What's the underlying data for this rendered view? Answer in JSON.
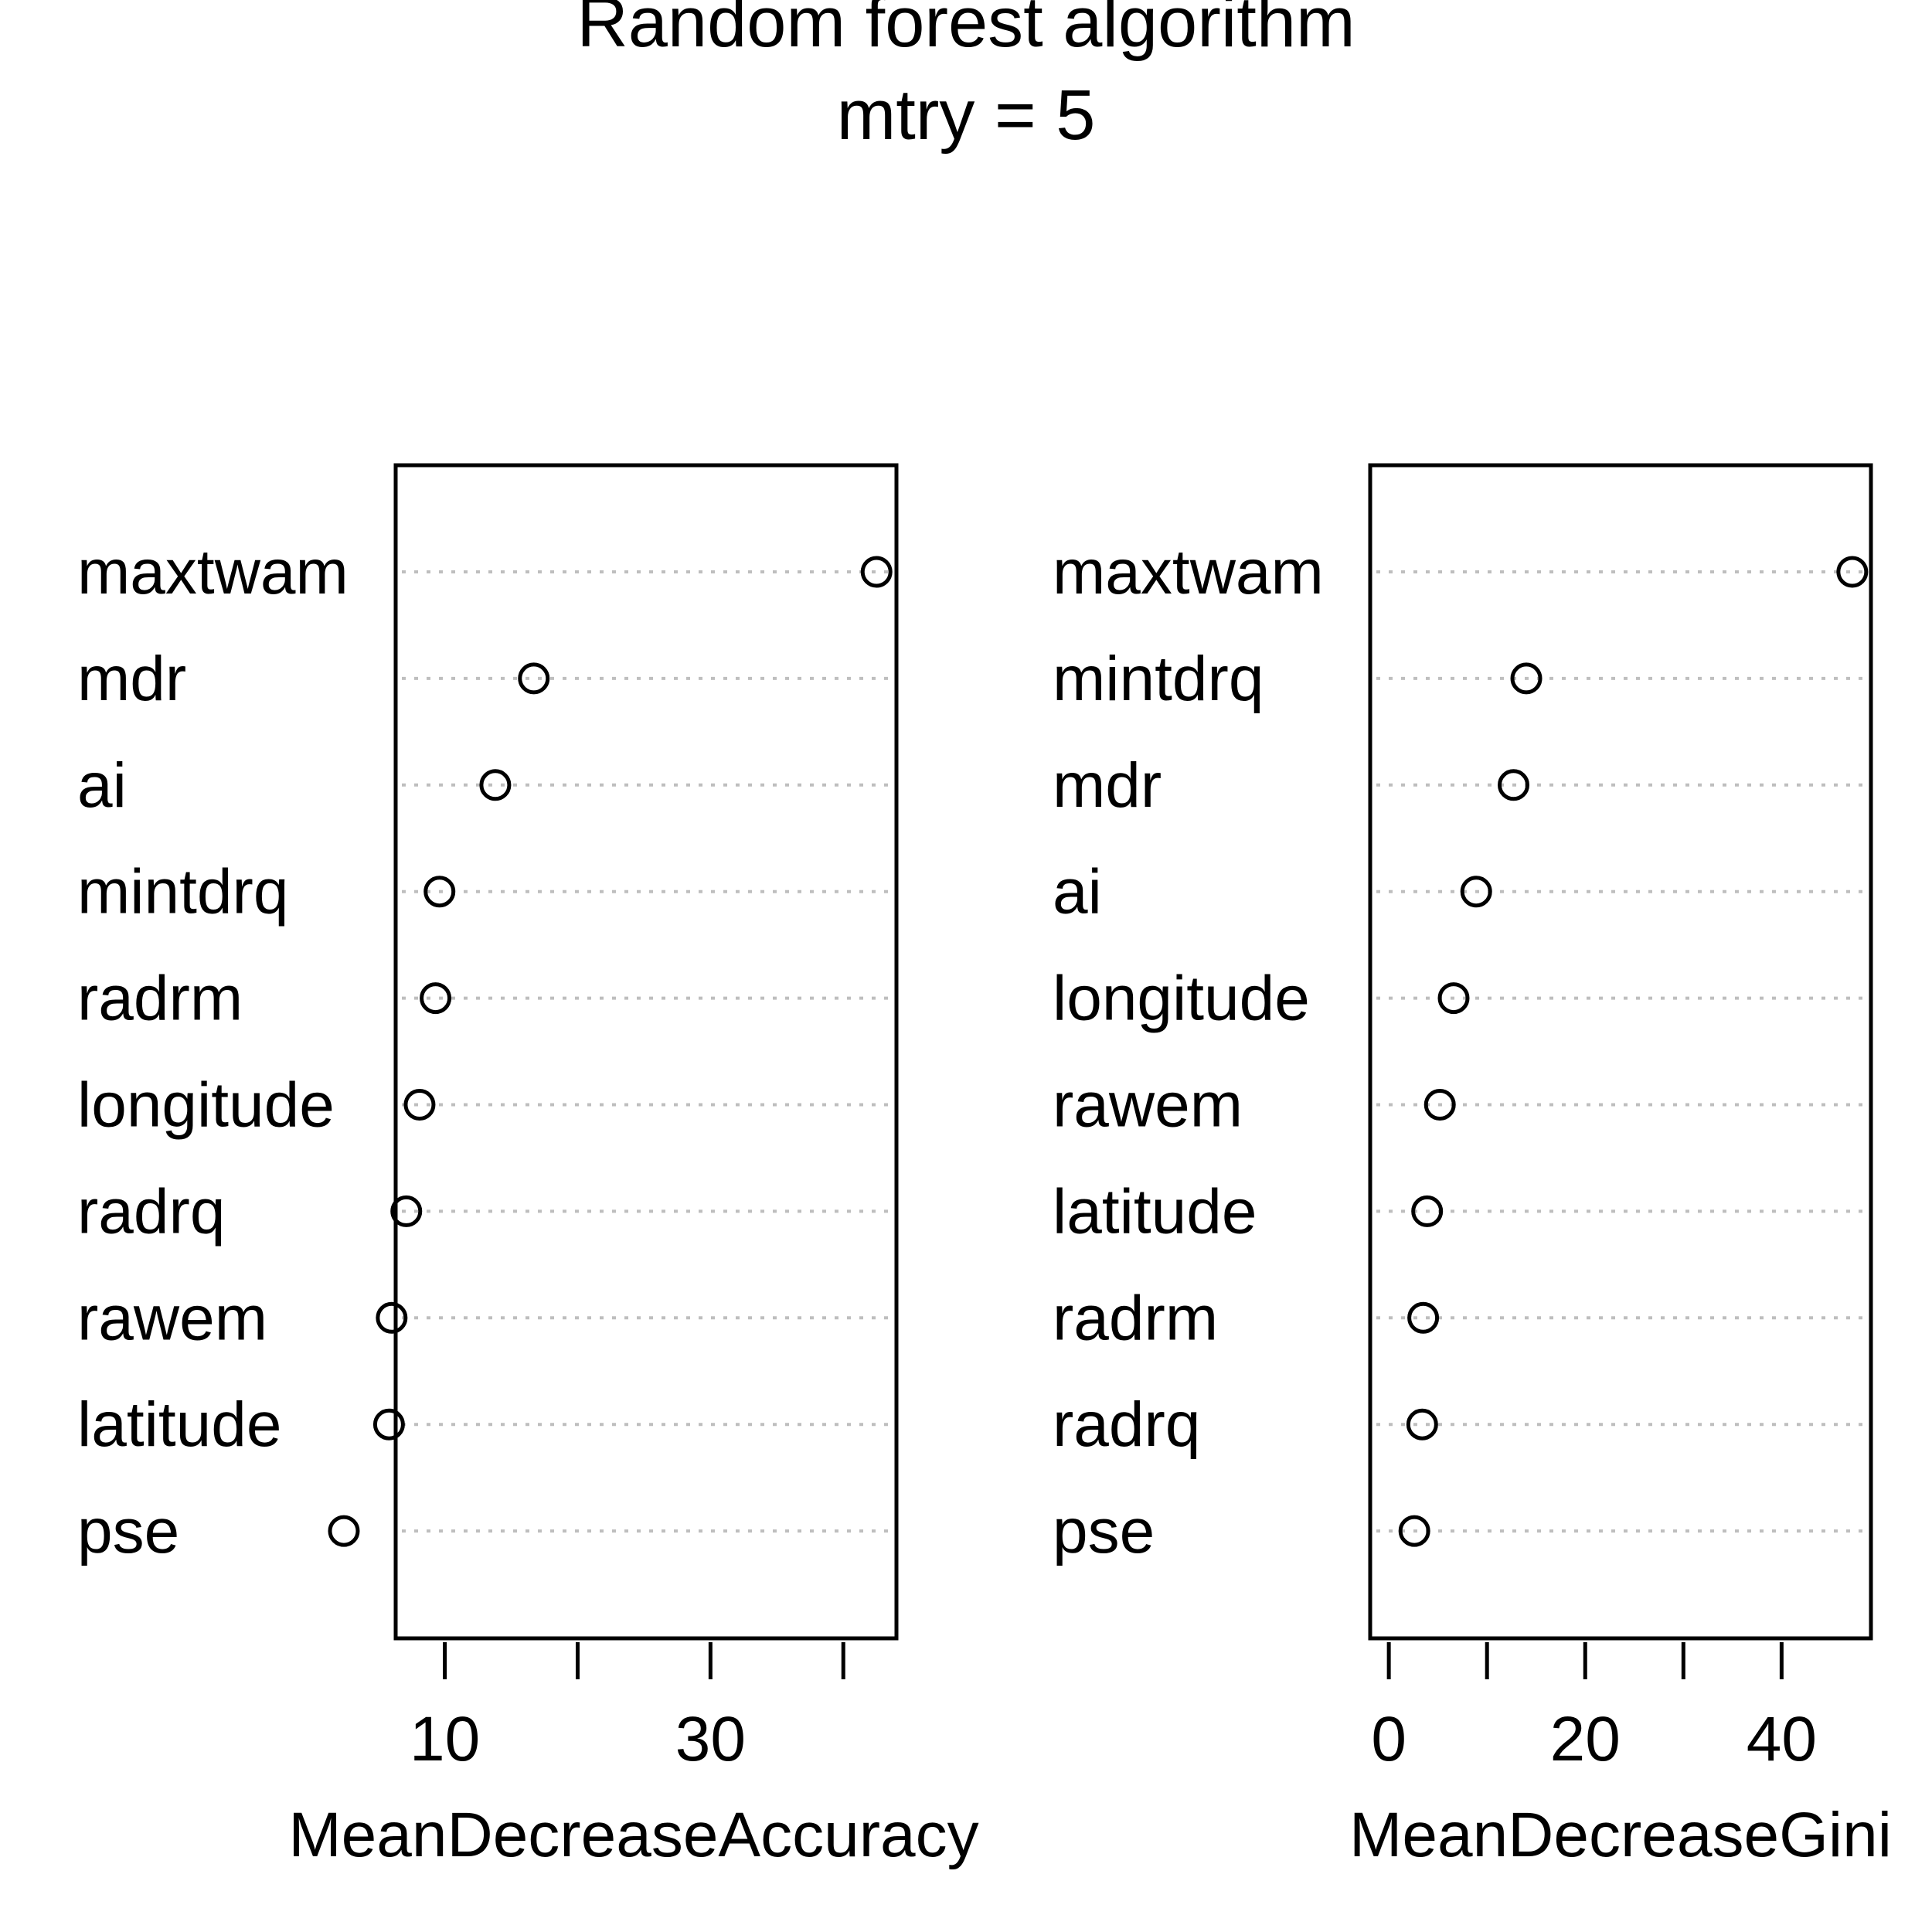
{
  "title_line1": "Random forest algorithm",
  "title_line2": "mtry = 5",
  "colors": {
    "ink": "#000000",
    "guide": "#bebebe",
    "background": "#ffffff"
  },
  "chart_data": [
    {
      "type": "scatter",
      "xlabel": "MeanDecreaseAccuracy",
      "xlim": [
        6.3,
        44
      ],
      "xticks": [
        10,
        20,
        30,
        40
      ],
      "xtick_labels": [
        "10",
        "",
        "30",
        ""
      ],
      "categories": [
        "maxtwam",
        "mdr",
        "ai",
        "mintdrq",
        "radrm",
        "longitude",
        "radrq",
        "rawem",
        "latitude",
        "pse"
      ],
      "values": [
        42.5,
        16.7,
        13.8,
        9.6,
        9.3,
        8.1,
        7.1,
        6.0,
        5.8,
        2.4
      ],
      "grid": "dotted horizontal guides"
    },
    {
      "type": "scatter",
      "xlabel": "MeanDecreaseGini",
      "xlim": [
        -1.9,
        49.1
      ],
      "xticks": [
        0,
        10,
        20,
        30,
        40
      ],
      "xtick_labels": [
        "0",
        "",
        "20",
        "",
        "40"
      ],
      "categories": [
        "maxtwam",
        "mintdrq",
        "mdr",
        "ai",
        "longitude",
        "rawem",
        "latitude",
        "radrm",
        "radrq",
        "pse"
      ],
      "values": [
        47.2,
        14.0,
        12.7,
        8.9,
        6.6,
        5.2,
        3.9,
        3.5,
        3.4,
        2.6
      ],
      "grid": "dotted horizontal guides"
    }
  ]
}
